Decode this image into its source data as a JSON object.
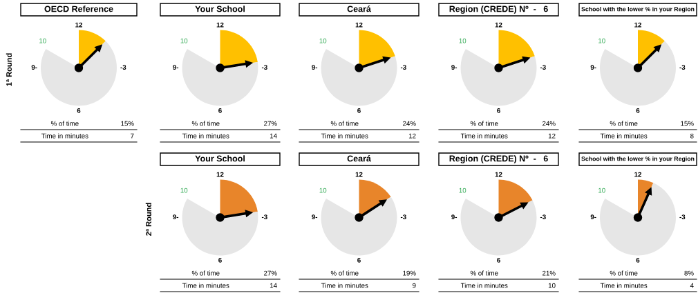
{
  "chart_data": [
    {
      "type": "pie",
      "title": "OECD Reference",
      "categories": [
        null,
        null
      ],
      "values": [
        15,
        85
      ],
      "colors": [
        "#ffc000",
        "#e6e6e6"
      ],
      "annotations": [
        "12",
        "-3",
        "6",
        "9-",
        "10",
        "% of time",
        "15%",
        "Time in minutes",
        "7",
        "1ª Round"
      ]
    },
    {
      "type": "pie",
      "title": "Your School",
      "categories": [
        null,
        null
      ],
      "values": [
        27,
        73
      ],
      "colors": [
        "#ffc000",
        "#e6e6e6"
      ],
      "annotations": [
        "12",
        "-3",
        "6",
        "9-",
        "10",
        "% of time",
        "27%",
        "Time in minutes",
        "14"
      ]
    },
    {
      "type": "pie",
      "title": "Ceará",
      "categories": [
        null,
        null
      ],
      "values": [
        24,
        76
      ],
      "colors": [
        "#ffc000",
        "#e6e6e6"
      ],
      "annotations": [
        "12",
        "-3",
        "6",
        "9-",
        "10",
        "% of time",
        "24%",
        "Time in minutes",
        "12"
      ]
    },
    {
      "type": "pie",
      "title": "Region (CREDE) Nº  -   6",
      "categories": [
        null,
        null
      ],
      "values": [
        24,
        76
      ],
      "colors": [
        "#ffc000",
        "#e6e6e6"
      ],
      "annotations": [
        "12",
        "-3",
        "6",
        "9-",
        "10",
        "% of time",
        "24%",
        "Time in minutes",
        "12"
      ]
    },
    {
      "type": "pie",
      "title": "School with the lower % in your Region",
      "categories": [
        null,
        null
      ],
      "values": [
        15,
        85
      ],
      "colors": [
        "#ffc000",
        "#e6e6e6"
      ],
      "annotations": [
        "12",
        "-3",
        "6",
        "9-",
        "10",
        "% of time",
        "15%",
        "Time in minutes",
        "8"
      ]
    },
    {
      "type": "pie",
      "title": "Your School",
      "categories": [
        null,
        null
      ],
      "values": [
        27,
        73
      ],
      "colors": [
        "#e8852a",
        "#e6e6e6"
      ],
      "annotations": [
        "12",
        "-3",
        "6",
        "9-",
        "10",
        "% of time",
        "27%",
        "Time in minutes",
        "14",
        "2ª Round"
      ]
    },
    {
      "type": "pie",
      "title": "Ceará",
      "categories": [
        null,
        null
      ],
      "values": [
        19,
        81
      ],
      "colors": [
        "#e8852a",
        "#e6e6e6"
      ],
      "annotations": [
        "12",
        "-3",
        "6",
        "9-",
        "10",
        "% of time",
        "19%",
        "Time in minutes",
        "9"
      ]
    },
    {
      "type": "pie",
      "title": "Region (CREDE) Nº  -   6",
      "categories": [
        null,
        null
      ],
      "values": [
        21,
        79
      ],
      "colors": [
        "#e8852a",
        "#e6e6e6"
      ],
      "annotations": [
        "12",
        "-3",
        "6",
        "9-",
        "10",
        "% of time",
        "21%",
        "Time in minutes",
        "10"
      ]
    },
    {
      "type": "pie",
      "title": "School with the lower % in your Region",
      "categories": [
        null,
        null
      ],
      "values": [
        8,
        92
      ],
      "colors": [
        "#e8852a",
        "#e6e6e6"
      ],
      "annotations": [
        "12",
        "-3",
        "6",
        "9-",
        "10",
        "% of time",
        "8%",
        "Time in minutes",
        "4"
      ]
    }
  ]
}
